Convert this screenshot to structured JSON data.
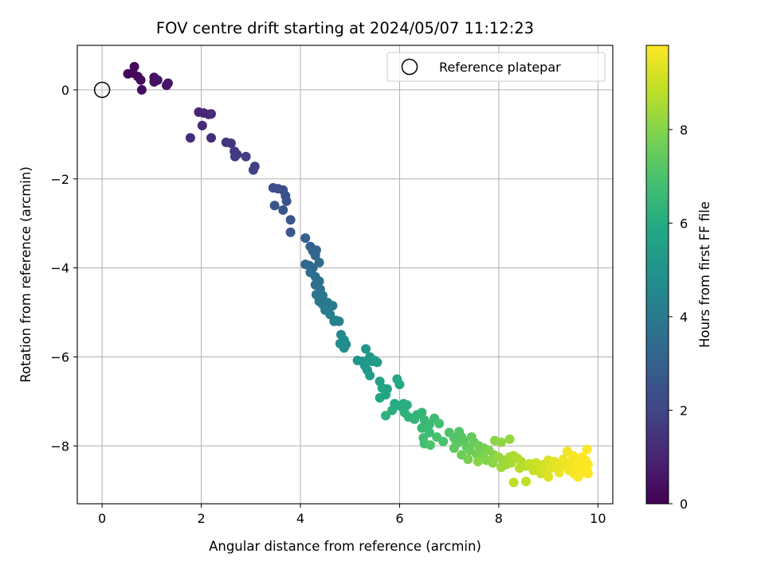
{
  "chart_data": {
    "type": "scatter",
    "title": "FOV centre drift starting at 2024/05/07 11:12:23",
    "xlabel": "Angular distance from reference (arcmin)",
    "ylabel": "Rotation from reference (arcmin)",
    "xlim": [
      -0.5,
      10.3
    ],
    "ylim": [
      -9.3,
      1.0
    ],
    "xticks": [
      0,
      2,
      4,
      6,
      8,
      10
    ],
    "xtick_labels": [
      "0",
      "2",
      "4",
      "6",
      "8",
      "10"
    ],
    "yticks": [
      0,
      -2,
      -4,
      -6,
      -8
    ],
    "ytick_labels": [
      "0",
      "−2",
      "−4",
      "−6",
      "−8"
    ],
    "grid": true,
    "legend": {
      "placement": "top-right",
      "entries": [
        "Reference platepar"
      ]
    },
    "reference_point": {
      "x": 0,
      "y": 0,
      "label": "Reference platepar"
    },
    "colorbar": {
      "label": "Hours from first FF file",
      "colormap": "viridis",
      "range": [
        0,
        9.8
      ],
      "ticks": [
        0,
        2,
        4,
        6,
        8
      ],
      "tick_labels": [
        "0",
        "2",
        "4",
        "6",
        "8"
      ]
    },
    "points_xyc": [
      [
        0.52,
        0.36,
        0.1
      ],
      [
        0.62,
        0.38,
        0.15
      ],
      [
        0.65,
        0.52,
        0.2
      ],
      [
        0.72,
        0.3,
        0.25
      ],
      [
        0.78,
        0.22,
        0.3
      ],
      [
        0.8,
        0.0,
        0.35
      ],
      [
        1.05,
        0.28,
        0.4
      ],
      [
        1.05,
        0.18,
        0.45
      ],
      [
        1.12,
        0.22,
        0.5
      ],
      [
        1.3,
        0.1,
        0.55
      ],
      [
        1.33,
        0.15,
        0.6
      ],
      [
        1.95,
        -0.5,
        1.0
      ],
      [
        2.05,
        -0.52,
        1.05
      ],
      [
        2.15,
        -0.55,
        1.1
      ],
      [
        2.2,
        -0.54,
        1.15
      ],
      [
        2.02,
        -0.8,
        1.2
      ],
      [
        1.78,
        -1.08,
        1.25
      ],
      [
        2.2,
        -1.08,
        1.3
      ],
      [
        2.5,
        -1.18,
        1.5
      ],
      [
        2.6,
        -1.2,
        1.55
      ],
      [
        2.67,
        -1.38,
        1.6
      ],
      [
        2.72,
        -1.45,
        1.65
      ],
      [
        2.68,
        -1.5,
        1.7
      ],
      [
        2.9,
        -1.5,
        1.75
      ],
      [
        3.08,
        -1.72,
        1.85
      ],
      [
        3.05,
        -1.8,
        1.9
      ],
      [
        3.45,
        -2.2,
        2.3
      ],
      [
        3.55,
        -2.22,
        2.35
      ],
      [
        3.65,
        -2.25,
        2.4
      ],
      [
        3.7,
        -2.38,
        2.45
      ],
      [
        3.72,
        -2.5,
        2.5
      ],
      [
        3.48,
        -2.6,
        2.55
      ],
      [
        3.65,
        -2.7,
        2.6
      ],
      [
        3.8,
        -2.92,
        2.65
      ],
      [
        3.8,
        -3.2,
        2.7
      ],
      [
        4.1,
        -3.33,
        3.0
      ],
      [
        4.2,
        -3.52,
        3.05
      ],
      [
        4.25,
        -3.62,
        3.1
      ],
      [
        4.32,
        -3.6,
        3.15
      ],
      [
        4.3,
        -3.72,
        3.2
      ],
      [
        4.1,
        -3.92,
        3.25
      ],
      [
        4.18,
        -3.95,
        3.3
      ],
      [
        4.25,
        -4.0,
        3.35
      ],
      [
        4.38,
        -3.88,
        3.4
      ],
      [
        4.2,
        -4.1,
        3.45
      ],
      [
        4.3,
        -4.2,
        3.5
      ],
      [
        4.38,
        -4.3,
        3.55
      ],
      [
        4.3,
        -4.38,
        3.6
      ],
      [
        4.4,
        -4.48,
        3.65
      ],
      [
        4.32,
        -4.6,
        3.8
      ],
      [
        4.45,
        -4.62,
        3.85
      ],
      [
        4.38,
        -4.75,
        3.9
      ],
      [
        4.45,
        -4.82,
        3.95
      ],
      [
        4.55,
        -4.78,
        4.0
      ],
      [
        4.65,
        -4.85,
        4.05
      ],
      [
        4.5,
        -4.95,
        4.1
      ],
      [
        4.6,
        -5.05,
        4.15
      ],
      [
        4.68,
        -5.2,
        4.2
      ],
      [
        4.72,
        -5.18,
        4.25
      ],
      [
        4.78,
        -5.2,
        4.3
      ],
      [
        4.82,
        -5.5,
        4.6
      ],
      [
        4.88,
        -5.62,
        4.65
      ],
      [
        4.8,
        -5.7,
        4.7
      ],
      [
        4.92,
        -5.72,
        4.75
      ],
      [
        4.88,
        -5.8,
        4.8
      ],
      [
        5.15,
        -6.08,
        5.0
      ],
      [
        5.25,
        -6.1,
        5.05
      ],
      [
        5.32,
        -5.82,
        5.1
      ],
      [
        5.4,
        -6.0,
        5.15
      ],
      [
        5.3,
        -6.2,
        5.2
      ],
      [
        5.45,
        -6.1,
        5.25
      ],
      [
        5.35,
        -6.3,
        5.3
      ],
      [
        5.5,
        -6.08,
        5.35
      ],
      [
        5.4,
        -6.42,
        5.4
      ],
      [
        5.55,
        -6.12,
        5.45
      ],
      [
        5.6,
        -6.55,
        5.6
      ],
      [
        5.65,
        -6.7,
        5.65
      ],
      [
        5.75,
        -6.72,
        5.7
      ],
      [
        5.72,
        -6.85,
        5.75
      ],
      [
        5.6,
        -6.92,
        5.8
      ],
      [
        5.95,
        -6.5,
        5.85
      ],
      [
        6.0,
        -6.62,
        5.9
      ],
      [
        5.9,
        -7.05,
        5.95
      ],
      [
        6.0,
        -7.1,
        6.0
      ],
      [
        6.08,
        -7.05,
        6.05
      ],
      [
        6.15,
        -7.08,
        6.1
      ],
      [
        5.85,
        -7.2,
        6.15
      ],
      [
        6.1,
        -7.25,
        6.2
      ],
      [
        5.72,
        -7.32,
        6.25
      ],
      [
        6.18,
        -7.35,
        6.3
      ],
      [
        6.3,
        -7.4,
        6.35
      ],
      [
        6.35,
        -7.3,
        6.4
      ],
      [
        6.45,
        -7.25,
        6.45
      ],
      [
        6.5,
        -7.42,
        6.5
      ],
      [
        6.45,
        -7.6,
        6.55
      ],
      [
        6.6,
        -7.52,
        6.6
      ],
      [
        6.7,
        -7.38,
        6.65
      ],
      [
        6.6,
        -7.7,
        6.7
      ],
      [
        6.48,
        -7.82,
        6.75
      ],
      [
        6.5,
        -7.95,
        6.8
      ],
      [
        6.8,
        -7.5,
        6.85
      ],
      [
        6.75,
        -7.8,
        6.9
      ],
      [
        6.88,
        -7.9,
        6.95
      ],
      [
        6.62,
        -7.98,
        7.0
      ],
      [
        7.0,
        -7.7,
        7.05
      ],
      [
        7.1,
        -7.82,
        7.1
      ],
      [
        7.2,
        -7.68,
        7.15
      ],
      [
        7.25,
        -7.8,
        7.2
      ],
      [
        7.15,
        -7.95,
        7.25
      ],
      [
        7.3,
        -7.9,
        7.3
      ],
      [
        7.1,
        -8.05,
        7.35
      ],
      [
        7.35,
        -8.02,
        7.4
      ],
      [
        7.45,
        -7.8,
        7.45
      ],
      [
        7.5,
        -7.92,
        7.5
      ],
      [
        7.42,
        -8.1,
        7.55
      ],
      [
        7.25,
        -8.2,
        7.6
      ],
      [
        7.6,
        -8.0,
        7.65
      ],
      [
        7.55,
        -8.18,
        7.7
      ],
      [
        7.7,
        -8.05,
        7.75
      ],
      [
        7.38,
        -8.3,
        7.8
      ],
      [
        7.68,
        -8.22,
        7.85
      ],
      [
        7.8,
        -8.1,
        7.9
      ],
      [
        7.75,
        -8.32,
        7.95
      ],
      [
        7.9,
        -8.2,
        8.0
      ],
      [
        7.58,
        -8.35,
        8.05
      ],
      [
        7.88,
        -8.38,
        8.1
      ],
      [
        7.92,
        -7.88,
        8.1
      ],
      [
        8.05,
        -7.92,
        8.15
      ],
      [
        8.22,
        -7.85,
        8.2
      ],
      [
        8.0,
        -8.25,
        8.25
      ],
      [
        8.1,
        -8.32,
        8.3
      ],
      [
        8.05,
        -8.48,
        8.35
      ],
      [
        8.15,
        -8.42,
        8.4
      ],
      [
        8.22,
        -8.25,
        8.45
      ],
      [
        8.25,
        -8.38,
        8.5
      ],
      [
        8.3,
        -8.22,
        8.55
      ],
      [
        8.38,
        -8.28,
        8.6
      ],
      [
        8.45,
        -8.35,
        8.65
      ],
      [
        8.42,
        -8.5,
        8.7
      ],
      [
        8.55,
        -8.45,
        8.75
      ],
      [
        8.3,
        -8.82,
        8.8
      ],
      [
        8.55,
        -8.8,
        8.85
      ],
      [
        8.62,
        -8.4,
        8.9
      ],
      [
        8.7,
        -8.55,
        8.95
      ],
      [
        8.75,
        -8.38,
        9.0
      ],
      [
        8.8,
        -8.48,
        9.05
      ],
      [
        8.85,
        -8.62,
        9.1
      ],
      [
        8.9,
        -8.42,
        9.15
      ],
      [
        8.95,
        -8.55,
        9.2
      ],
      [
        9.0,
        -8.32,
        9.25
      ],
      [
        9.0,
        -8.7,
        9.3
      ],
      [
        9.05,
        -8.5,
        9.35
      ],
      [
        9.12,
        -8.35,
        9.4
      ],
      [
        9.18,
        -8.45,
        9.45
      ],
      [
        9.22,
        -8.6,
        9.5
      ],
      [
        9.3,
        -8.3,
        9.55
      ],
      [
        9.35,
        -8.45,
        9.6
      ],
      [
        9.38,
        -8.12,
        9.6
      ],
      [
        9.42,
        -8.55,
        9.62
      ],
      [
        9.45,
        -8.35,
        9.64
      ],
      [
        9.5,
        -8.22,
        9.66
      ],
      [
        9.52,
        -8.62,
        9.68
      ],
      [
        9.55,
        -8.45,
        9.7
      ],
      [
        9.58,
        -8.3,
        9.72
      ],
      [
        9.6,
        -8.7,
        9.74
      ],
      [
        9.62,
        -8.52,
        9.76
      ],
      [
        9.65,
        -8.38,
        9.78
      ],
      [
        9.68,
        -8.25,
        9.8
      ],
      [
        9.7,
        -8.6,
        9.8
      ],
      [
        9.72,
        -8.45,
        9.8
      ],
      [
        9.75,
        -8.32,
        9.8
      ],
      [
        9.78,
        -8.55,
        9.8
      ],
      [
        9.78,
        -8.08,
        9.8
      ],
      [
        9.8,
        -8.42,
        9.8
      ],
      [
        9.8,
        -8.62,
        9.8
      ]
    ]
  }
}
